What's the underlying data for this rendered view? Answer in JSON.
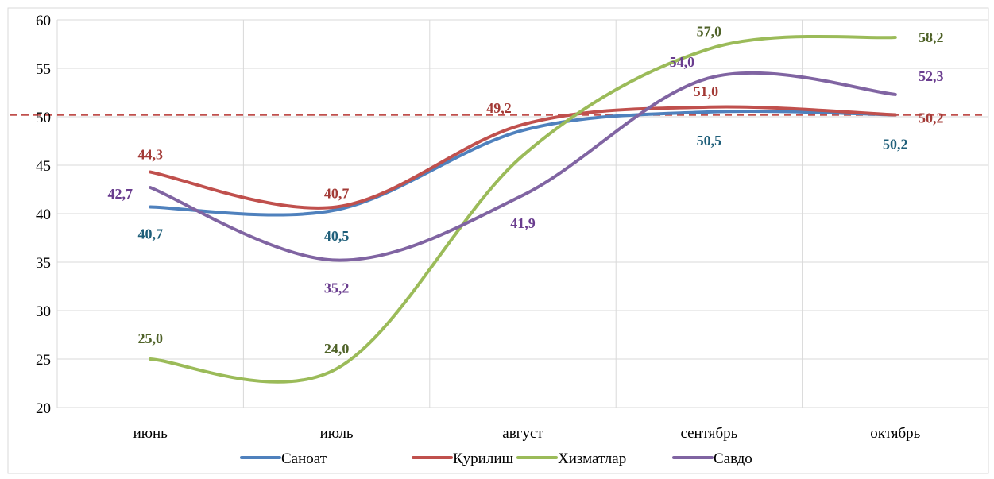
{
  "chart_data": {
    "type": "line",
    "smooth": true,
    "categories": [
      "июнь",
      "июль",
      "август",
      "сентябрь",
      "октябрь"
    ],
    "ylim": [
      20,
      60
    ],
    "yticks": [
      20,
      25,
      30,
      35,
      40,
      45,
      50,
      55,
      60
    ],
    "grid": "both",
    "legend_position": "bottom",
    "reference_line": {
      "value": 50.2,
      "style": "dashed",
      "color": "#C0504D"
    },
    "series": [
      {
        "name": "Саноат",
        "color": "#4F81BD",
        "label_color": "#1F5F7A",
        "values": [
          40.7,
          40.5,
          null,
          50.5,
          50.2
        ],
        "curve": [
          40.7,
          40.4,
          48.6,
          50.5,
          50.2
        ],
        "labels": [
          "40,7",
          "40,5",
          null,
          "50,5",
          "50,2"
        ]
      },
      {
        "name": "Қурилиш",
        "color": "#C0504D",
        "label_color": "#A33A36",
        "values": [
          44.3,
          40.7,
          49.2,
          51.0,
          50.2
        ],
        "labels": [
          "44,3",
          "40,7",
          "49,2",
          "51,0",
          "50,2"
        ]
      },
      {
        "name": "Хизматлар",
        "color": "#9BBB59",
        "label_color": "#4F6228",
        "values": [
          25.0,
          24.0,
          null,
          57.0,
          58.2
        ],
        "curve": [
          25.0,
          24.0,
          46.0,
          57.0,
          58.2
        ],
        "labels": [
          "25,0",
          "24,0",
          null,
          "57,0",
          "58,2"
        ]
      },
      {
        "name": "Савдо",
        "color": "#8064A2",
        "label_color": "#6A3D8F",
        "values": [
          42.7,
          35.2,
          41.9,
          54.0,
          52.3
        ],
        "labels": [
          "42,7",
          "35,2",
          "41,9",
          "54,0",
          "52,3"
        ]
      }
    ]
  }
}
